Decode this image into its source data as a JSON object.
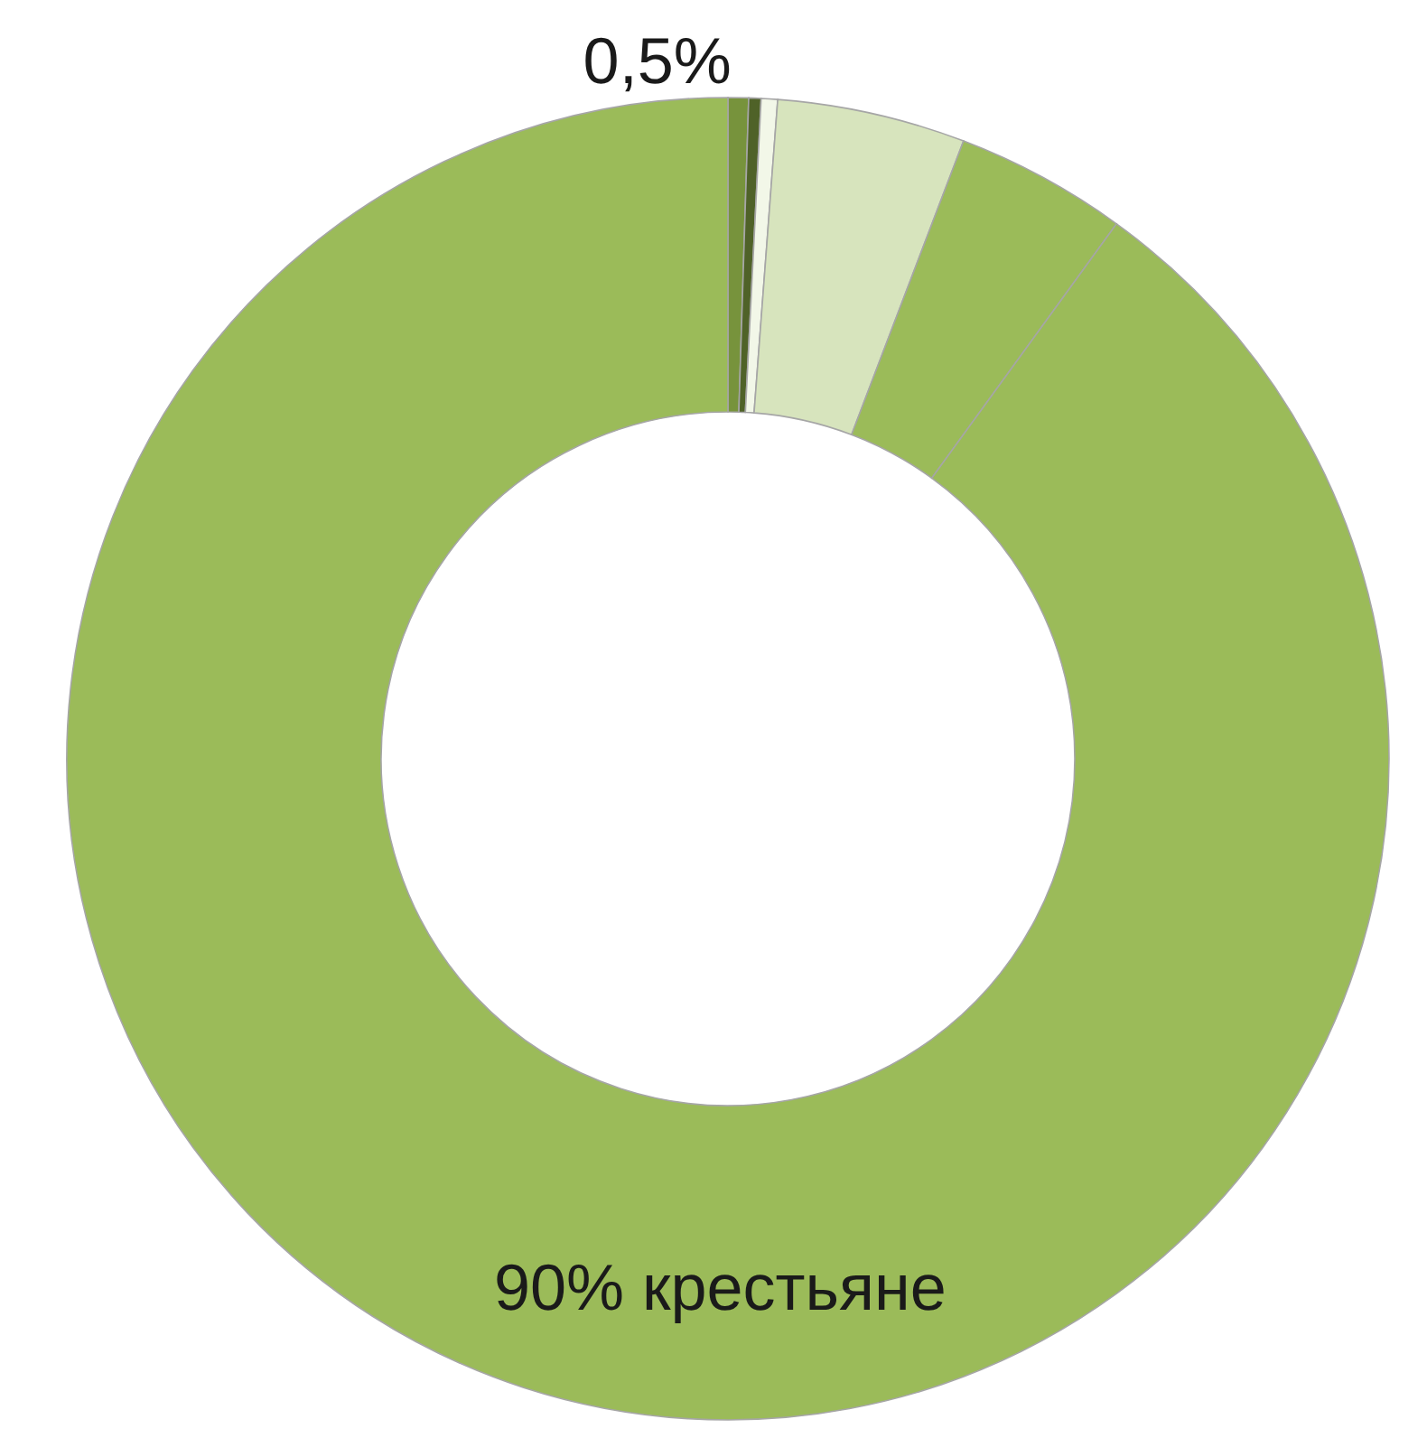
{
  "chart_data": {
    "type": "donut",
    "categories": [
      null,
      null,
      null,
      null,
      null,
      "крестьяне"
    ],
    "values": [
      0.5,
      0.3,
      0.4,
      4.6,
      4.2,
      90
    ],
    "colors": [
      "#77933c",
      "#4f6228",
      "#f2f7e8",
      "#d7e4bd",
      "#9bbb59",
      "#9bbb59"
    ],
    "value_labels": [
      "0,5%",
      null,
      null,
      null,
      null,
      "90%"
    ]
  }
}
